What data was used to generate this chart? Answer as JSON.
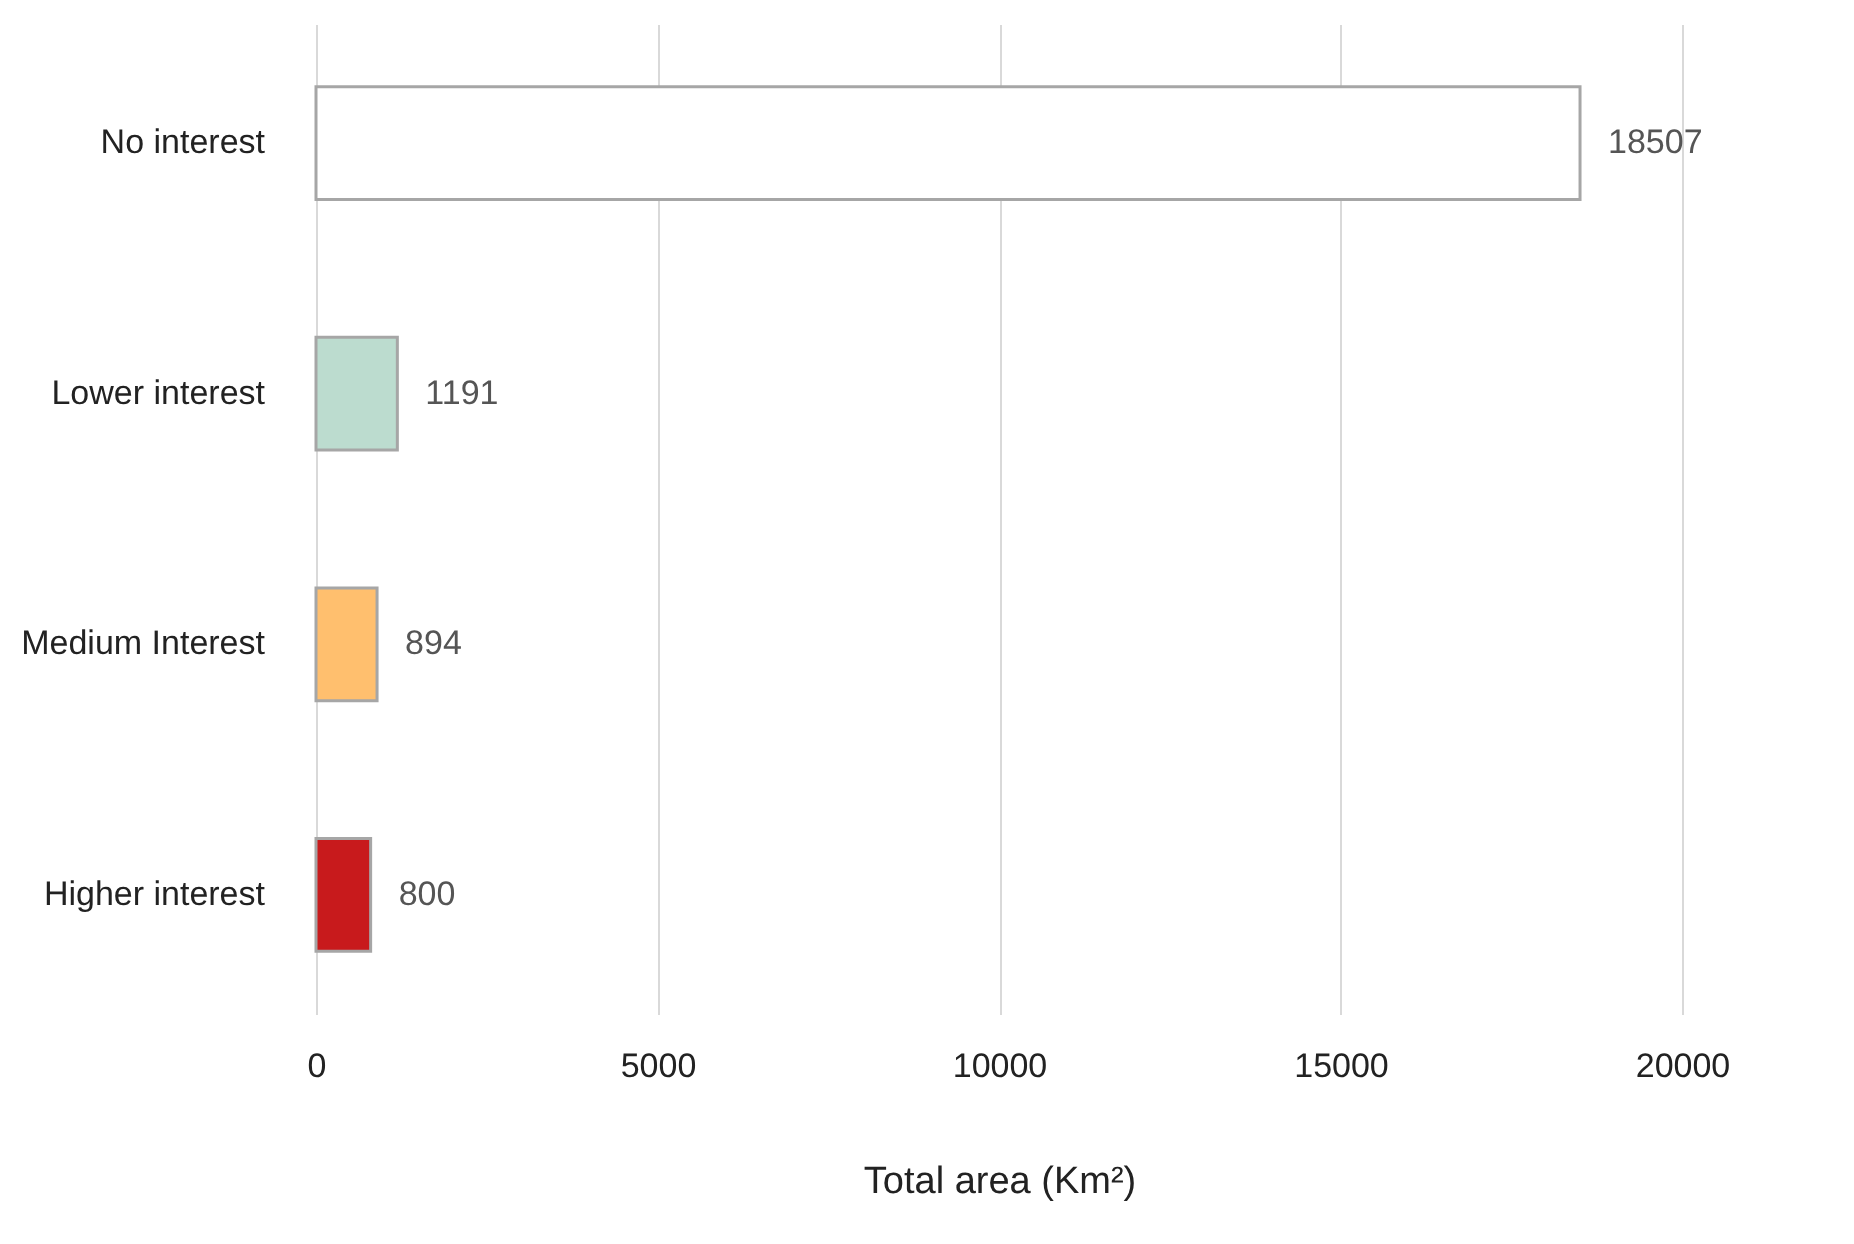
{
  "chart_data": {
    "type": "bar",
    "orientation": "horizontal",
    "categories": [
      "No interest",
      "Lower interest",
      "Medium Interest",
      "Higher interest"
    ],
    "values": [
      18507,
      1191,
      894,
      800
    ],
    "colors": [
      "#ffffff",
      "#bcdccf",
      "#ffbf6e",
      "#c81a1c"
    ],
    "xlim": [
      0,
      20000
    ],
    "xticks": [
      0,
      5000,
      10000,
      15000,
      20000
    ],
    "xlabel": "Total area (Km²)",
    "grid": "x",
    "data_labels": true,
    "legend": false
  }
}
